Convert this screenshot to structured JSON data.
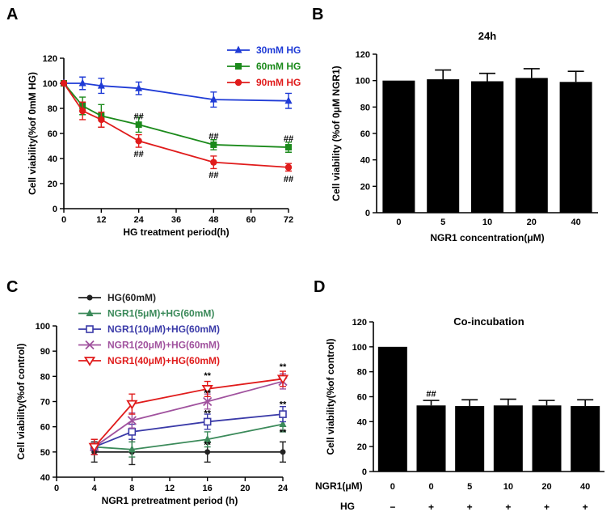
{
  "chart_data": [
    {
      "panel": "A",
      "type": "line",
      "title": "",
      "xlabel": "HG treatment period(h)",
      "ylabel": "Cell viability(%of 0mM HG)",
      "xlim": [
        0,
        72
      ],
      "ylim": [
        0,
        120
      ],
      "xticks": [
        0,
        12,
        24,
        36,
        48,
        60,
        72
      ],
      "yticks": [
        0,
        20,
        40,
        60,
        80,
        100,
        120
      ],
      "legend_position": "top-right",
      "series": [
        {
          "name": "30mM HG",
          "color": "#1f3bd6",
          "marker": "triangle",
          "x": [
            0,
            6,
            12,
            24,
            48,
            72
          ],
          "values": [
            100,
            100,
            98,
            96,
            87,
            86
          ],
          "err": [
            0,
            5,
            6,
            5,
            6,
            6
          ]
        },
        {
          "name": "60mM HG",
          "color": "#1b8a1b",
          "marker": "square",
          "x": [
            0,
            6,
            12,
            24,
            48,
            72
          ],
          "values": [
            100,
            82,
            74,
            67,
            51,
            49
          ],
          "err": [
            0,
            7,
            9,
            6,
            4,
            4
          ]
        },
        {
          "name": "90mM HG",
          "color": "#e01b1b",
          "marker": "circle",
          "x": [
            0,
            6,
            12,
            24,
            48,
            72
          ],
          "values": [
            100,
            78,
            71,
            54,
            37,
            33
          ],
          "err": [
            0,
            7,
            6,
            5,
            5,
            3
          ]
        }
      ],
      "annotations": [
        {
          "text": "##",
          "x": 24,
          "y": 74
        },
        {
          "text": "##",
          "x": 24,
          "y": 44
        },
        {
          "text": "##",
          "x": 48,
          "y": 58
        },
        {
          "text": "##",
          "x": 48,
          "y": 27
        },
        {
          "text": "##",
          "x": 72,
          "y": 56
        },
        {
          "text": "##",
          "x": 72,
          "y": 24
        }
      ]
    },
    {
      "panel": "B",
      "type": "bar",
      "title": "24h",
      "xlabel": "NGR1 concentration(μM)",
      "ylabel": "Cell viability (%of 0μM NGR1)",
      "ylim": [
        0,
        120
      ],
      "yticks": [
        0,
        20,
        40,
        60,
        80,
        100,
        120
      ],
      "categories": [
        "0",
        "5",
        "10",
        "20",
        "40"
      ],
      "values": [
        100,
        101,
        99.5,
        102,
        99
      ],
      "err": [
        0,
        7,
        6,
        7,
        8
      ],
      "color": "#000000"
    },
    {
      "panel": "C",
      "type": "line",
      "title": "",
      "xlabel": "NGR1 pretreatment period (h)",
      "ylabel": "Cell viability(%of control)",
      "xlim": [
        0,
        24
      ],
      "ylim": [
        40,
        100
      ],
      "xticks": [
        0,
        4,
        8,
        12,
        16,
        20,
        24
      ],
      "yticks": [
        40,
        50,
        60,
        70,
        80,
        90,
        100
      ],
      "legend_position": "top-left",
      "series": [
        {
          "name": "HG(60mM)",
          "color": "#222222",
          "marker": "dot",
          "x": [
            4,
            8,
            16,
            24
          ],
          "values": [
            50,
            50,
            50,
            50
          ],
          "err": [
            4,
            5,
            4,
            4
          ]
        },
        {
          "name": "NGR1(5μM)+HG(60mM)",
          "color": "#3b8a5a",
          "marker": "triangle",
          "x": [
            4,
            8,
            16,
            24
          ],
          "values": [
            52,
            51,
            55,
            61
          ],
          "err": [
            3,
            3,
            3,
            3
          ]
        },
        {
          "name": "NGR1(10μM)+HG(60mM)",
          "color": "#3a3aa8",
          "marker": "square-open",
          "x": [
            4,
            8,
            16,
            24
          ],
          "values": [
            52,
            58,
            62,
            65
          ],
          "err": [
            3,
            3,
            3,
            3
          ]
        },
        {
          "name": "NGR1(20μM)+HG(60mM)",
          "color": "#a0529e",
          "marker": "x",
          "x": [
            4,
            8,
            16,
            24
          ],
          "values": [
            52,
            62.5,
            70,
            78
          ],
          "err": [
            3,
            3,
            3,
            3
          ]
        },
        {
          "name": "NGR1(40μM)+HG(60mM)",
          "color": "#e01b1b",
          "marker": "triangle-down-open",
          "x": [
            4,
            8,
            16,
            24
          ],
          "values": [
            52,
            69,
            75,
            79
          ],
          "err": [
            3,
            4,
            3,
            3
          ]
        }
      ],
      "annotations": [
        {
          "text": "**",
          "x": 16,
          "y": 80.5
        },
        {
          "text": "**",
          "x": 16,
          "y": 73.5
        },
        {
          "text": "**",
          "x": 16,
          "y": 65.5
        },
        {
          "text": "**",
          "x": 16,
          "y": 53
        },
        {
          "text": "**",
          "x": 24,
          "y": 84
        },
        {
          "text": "**",
          "x": 24,
          "y": 69
        },
        {
          "text": "**",
          "x": 24,
          "y": 58
        }
      ]
    },
    {
      "panel": "D",
      "type": "bar",
      "title": "Co-incubation",
      "xlabel": "",
      "ylabel": "Cell viability(%of control)",
      "ylim": [
        0,
        120
      ],
      "yticks": [
        0,
        20,
        40,
        60,
        80,
        100,
        120
      ],
      "categories": [
        "0",
        "0",
        "5",
        "10",
        "20",
        "40"
      ],
      "values": [
        100,
        53,
        52.5,
        53,
        53,
        52.5
      ],
      "err": [
        0,
        4,
        5,
        5,
        4,
        5
      ],
      "color": "#000000",
      "row_labels": [
        "NGR1(μM)",
        "HG"
      ],
      "hg_row": [
        "−",
        "+",
        "+",
        "+",
        "+",
        "+"
      ],
      "annotations": [
        {
          "text": "##",
          "category_index": 1,
          "y": 60
        }
      ]
    }
  ]
}
